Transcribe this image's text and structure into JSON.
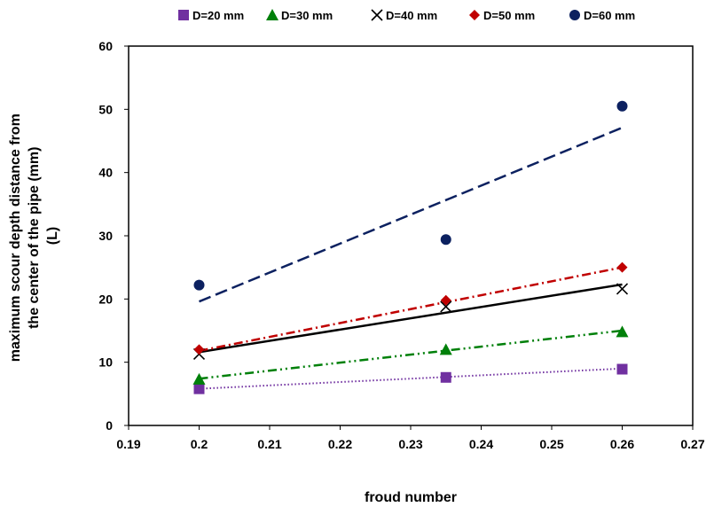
{
  "chart_data": {
    "type": "scatter",
    "title": "",
    "xlabel": "froud number",
    "ylabel_lines": [
      "maximum scour depth distance from",
      "the center of the pipe (mm)",
      "(L)"
    ],
    "xlim": [
      0.19,
      0.27
    ],
    "ylim": [
      0,
      60
    ],
    "xticks": [
      "0.19",
      "0.2",
      "0.21",
      "0.22",
      "0.23",
      "0.24",
      "0.25",
      "0.26",
      "0.27"
    ],
    "yticks": [
      "0",
      "10",
      "20",
      "30",
      "40",
      "50",
      "60"
    ],
    "x_values": [
      0.2,
      0.235,
      0.26
    ],
    "grid": false,
    "legend_position": "top",
    "series": [
      {
        "name": "D=20 mm",
        "marker": "square",
        "color": "#7030A0",
        "dash": "dotted",
        "y": [
          5.8,
          7.6,
          8.9
        ],
        "trend": [
          5.8,
          9.0
        ]
      },
      {
        "name": "D=30 mm",
        "marker": "triangle",
        "color": "#00800A",
        "dash": "dashdotdot",
        "y": [
          7.3,
          12.0,
          14.8
        ],
        "trend": [
          7.4,
          15.0
        ]
      },
      {
        "name": "D=40 mm",
        "marker": "x",
        "color": "#000000",
        "dash": "solid",
        "y": [
          11.3,
          18.8,
          21.6
        ],
        "trend": [
          11.6,
          22.3
        ]
      },
      {
        "name": "D=50 mm",
        "marker": "diamond",
        "color": "#C00000",
        "dash": "dashdot",
        "y": [
          12.0,
          19.8,
          25.0
        ],
        "trend": [
          11.8,
          25.0
        ]
      },
      {
        "name": "D=60 mm",
        "marker": "circle",
        "color": "#0C2160",
        "dash": "longdash",
        "y": [
          22.2,
          29.4,
          50.5
        ],
        "trend": [
          19.6,
          47.1
        ]
      }
    ]
  }
}
